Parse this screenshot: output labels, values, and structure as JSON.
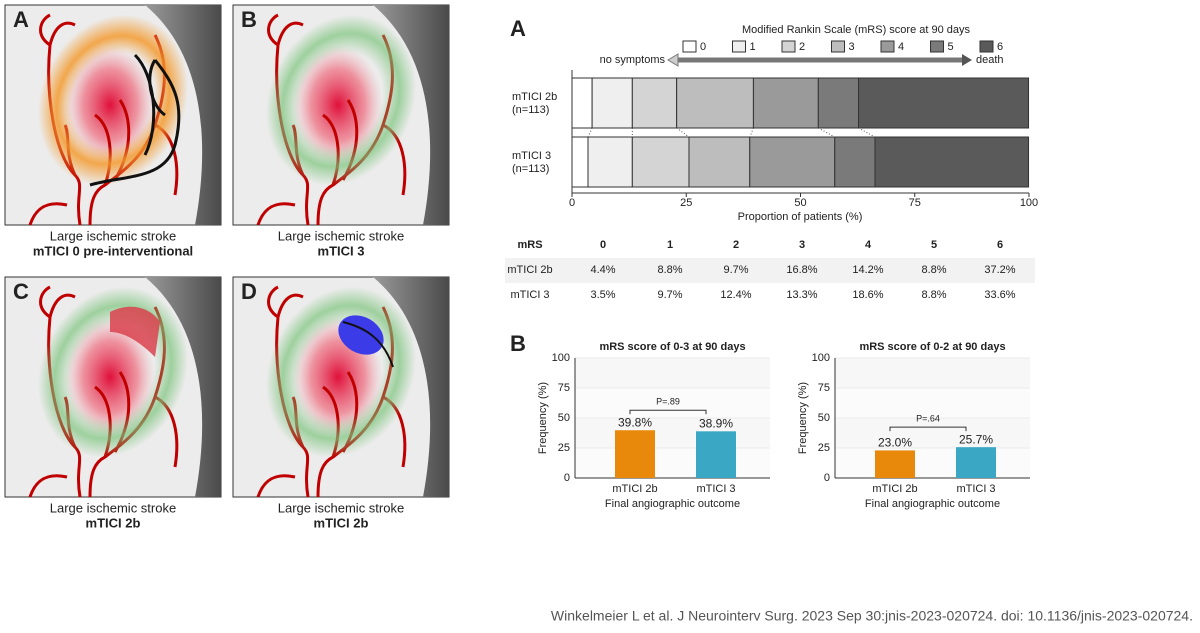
{
  "panels": [
    {
      "letter": "A",
      "caption": "Large ischemic stroke",
      "subcaption": "mTICI 0 pre-interventional"
    },
    {
      "letter": "B",
      "caption": "Large ischemic stroke",
      "subcaption": "mTICI 3"
    },
    {
      "letter": "C",
      "caption": "Large ischemic stroke",
      "subcaption": "mTICI 2b"
    },
    {
      "letter": "D",
      "caption": "Large ischemic stroke",
      "subcaption": "mTICI 2b"
    }
  ],
  "chart_data": [
    {
      "type": "stacked_bar",
      "panel_letter": "A",
      "legend_title": "Modified Rankin Scale (mRS) score at 90 days",
      "arrow_start": "no symptoms",
      "arrow_end": "death",
      "categories": [
        "mTICI 2b",
        "mTICI 3"
      ],
      "category_notes": [
        "(n=113)",
        "(n=113)"
      ],
      "series": [
        {
          "name": "0",
          "color": "#ffffff",
          "values": [
            4.4,
            3.5
          ]
        },
        {
          "name": "1",
          "color": "#efefef",
          "values": [
            8.8,
            9.7
          ]
        },
        {
          "name": "2",
          "color": "#d4d4d4",
          "values": [
            9.7,
            12.4
          ]
        },
        {
          "name": "3",
          "color": "#bdbdbd",
          "values": [
            16.8,
            13.3
          ]
        },
        {
          "name": "4",
          "color": "#9a9a9a",
          "values": [
            14.2,
            18.6
          ]
        },
        {
          "name": "5",
          "color": "#7a7a7a",
          "values": [
            8.8,
            8.8
          ]
        },
        {
          "name": "6",
          "color": "#5a5a5a",
          "values": [
            37.2,
            33.6
          ]
        }
      ],
      "xlim": [
        0,
        100
      ],
      "xticks": [
        0,
        25,
        50,
        75,
        100
      ],
      "xlabel": "Proportion of patients (%)"
    },
    {
      "type": "bar",
      "panel_letter": "B",
      "title": "mRS score of 0-3 at 90 days",
      "categories": [
        "mTICI 2b",
        "mTICI 3"
      ],
      "values": [
        39.8,
        38.9
      ],
      "value_labels": [
        "39.8%",
        "38.9%"
      ],
      "colors": [
        "#e8890c",
        "#3aa7c4"
      ],
      "ylim": [
        0,
        100
      ],
      "yticks": [
        0,
        25,
        50,
        75,
        100
      ],
      "ylabel": "Frequency (%)",
      "xlabel": "Final angiographic outcome",
      "annotation": "P=.89"
    },
    {
      "type": "bar",
      "title": "mRS score of 0-2 at 90 days",
      "categories": [
        "mTICI 2b",
        "mTICI 3"
      ],
      "values": [
        23.0,
        25.7
      ],
      "value_labels": [
        "23.0%",
        "25.7%"
      ],
      "colors": [
        "#e8890c",
        "#3aa7c4"
      ],
      "ylim": [
        0,
        100
      ],
      "yticks": [
        0,
        25,
        50,
        75,
        100
      ],
      "ylabel": "Frequency (%)",
      "xlabel": "Final angiographic outcome",
      "annotation": "P=.64"
    }
  ],
  "table": {
    "header": [
      "mRS",
      "0",
      "1",
      "2",
      "3",
      "4",
      "5",
      "6"
    ],
    "rows": [
      [
        "mTICI 2b",
        "4.4%",
        "8.8%",
        "9.7%",
        "16.8%",
        "14.2%",
        "8.8%",
        "37.2%"
      ],
      [
        "mTICI 3",
        "3.5%",
        "9.7%",
        "12.4%",
        "13.3%",
        "18.6%",
        "8.8%",
        "33.6%"
      ]
    ]
  },
  "citation": "Winkelmeier L et al. J Neurointerv Surg. 2023 Sep 30:jnis-2023-020724. doi: 10.1136/jnis-2023-020724."
}
